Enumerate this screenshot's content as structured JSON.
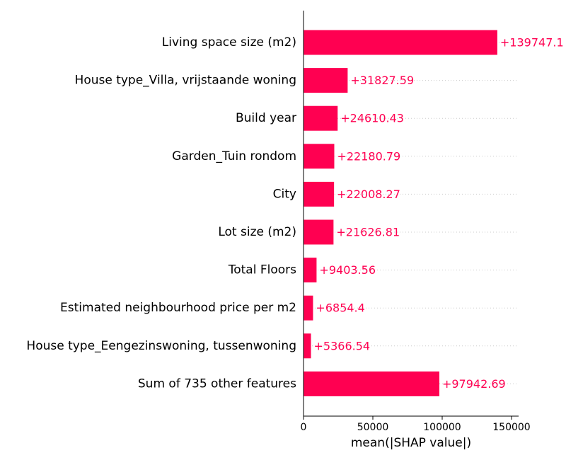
{
  "chart_data": {
    "type": "bar",
    "orientation": "horizontal",
    "categories": [
      "Living space size (m2)",
      "House type_Villa, vrijstaande woning",
      "Build year",
      "Garden_Tuin rondom",
      "City",
      "Lot size (m2)",
      "Total Floors",
      "Estimated neighbourhood price per m2",
      "House type_Eengezinswoning, tussenwoning",
      "Sum of 735 other features"
    ],
    "values": [
      139747.1,
      31827.59,
      24610.43,
      22180.79,
      22008.27,
      21626.81,
      9403.56,
      6854.4,
      5366.54,
      97942.69
    ],
    "value_labels": [
      "+139747.1",
      "+31827.59",
      "+24610.43",
      "+22180.79",
      "+22008.27",
      "+21626.81",
      "+9403.56",
      "+6854.4",
      "+5366.54",
      "+97942.69"
    ],
    "xlabel": "mean(|SHAP value|)",
    "xticks": [
      0,
      50000,
      100000,
      150000
    ],
    "xtick_labels": [
      "0",
      "50000",
      "100000",
      "150000"
    ],
    "xlim": [
      0,
      154000
    ],
    "grid": "dotted row guides",
    "bar_color": "#ff0051",
    "label_color": "#ff0051"
  }
}
